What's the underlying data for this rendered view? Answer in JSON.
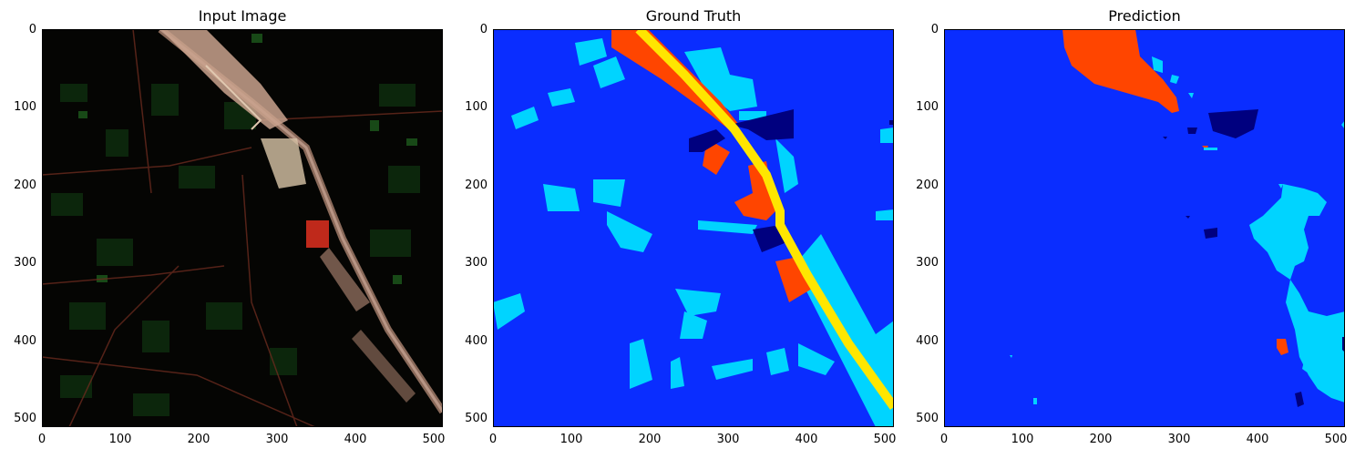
{
  "panels": [
    {
      "title": "Input Image"
    },
    {
      "title": "Ground Truth"
    },
    {
      "title": "Prediction"
    }
  ],
  "axes": {
    "x_ticks": [
      "0",
      "100",
      "200",
      "300",
      "400",
      "500"
    ],
    "y_ticks": [
      "0",
      "100",
      "200",
      "300",
      "400",
      "500"
    ]
  },
  "colors": {
    "background_class": "#0a2dff",
    "light_blue_class": "#00d4ff",
    "dark_blue_class": "#00007f",
    "orange_class": "#ff4500",
    "yellow_class": "#ffe600"
  }
}
